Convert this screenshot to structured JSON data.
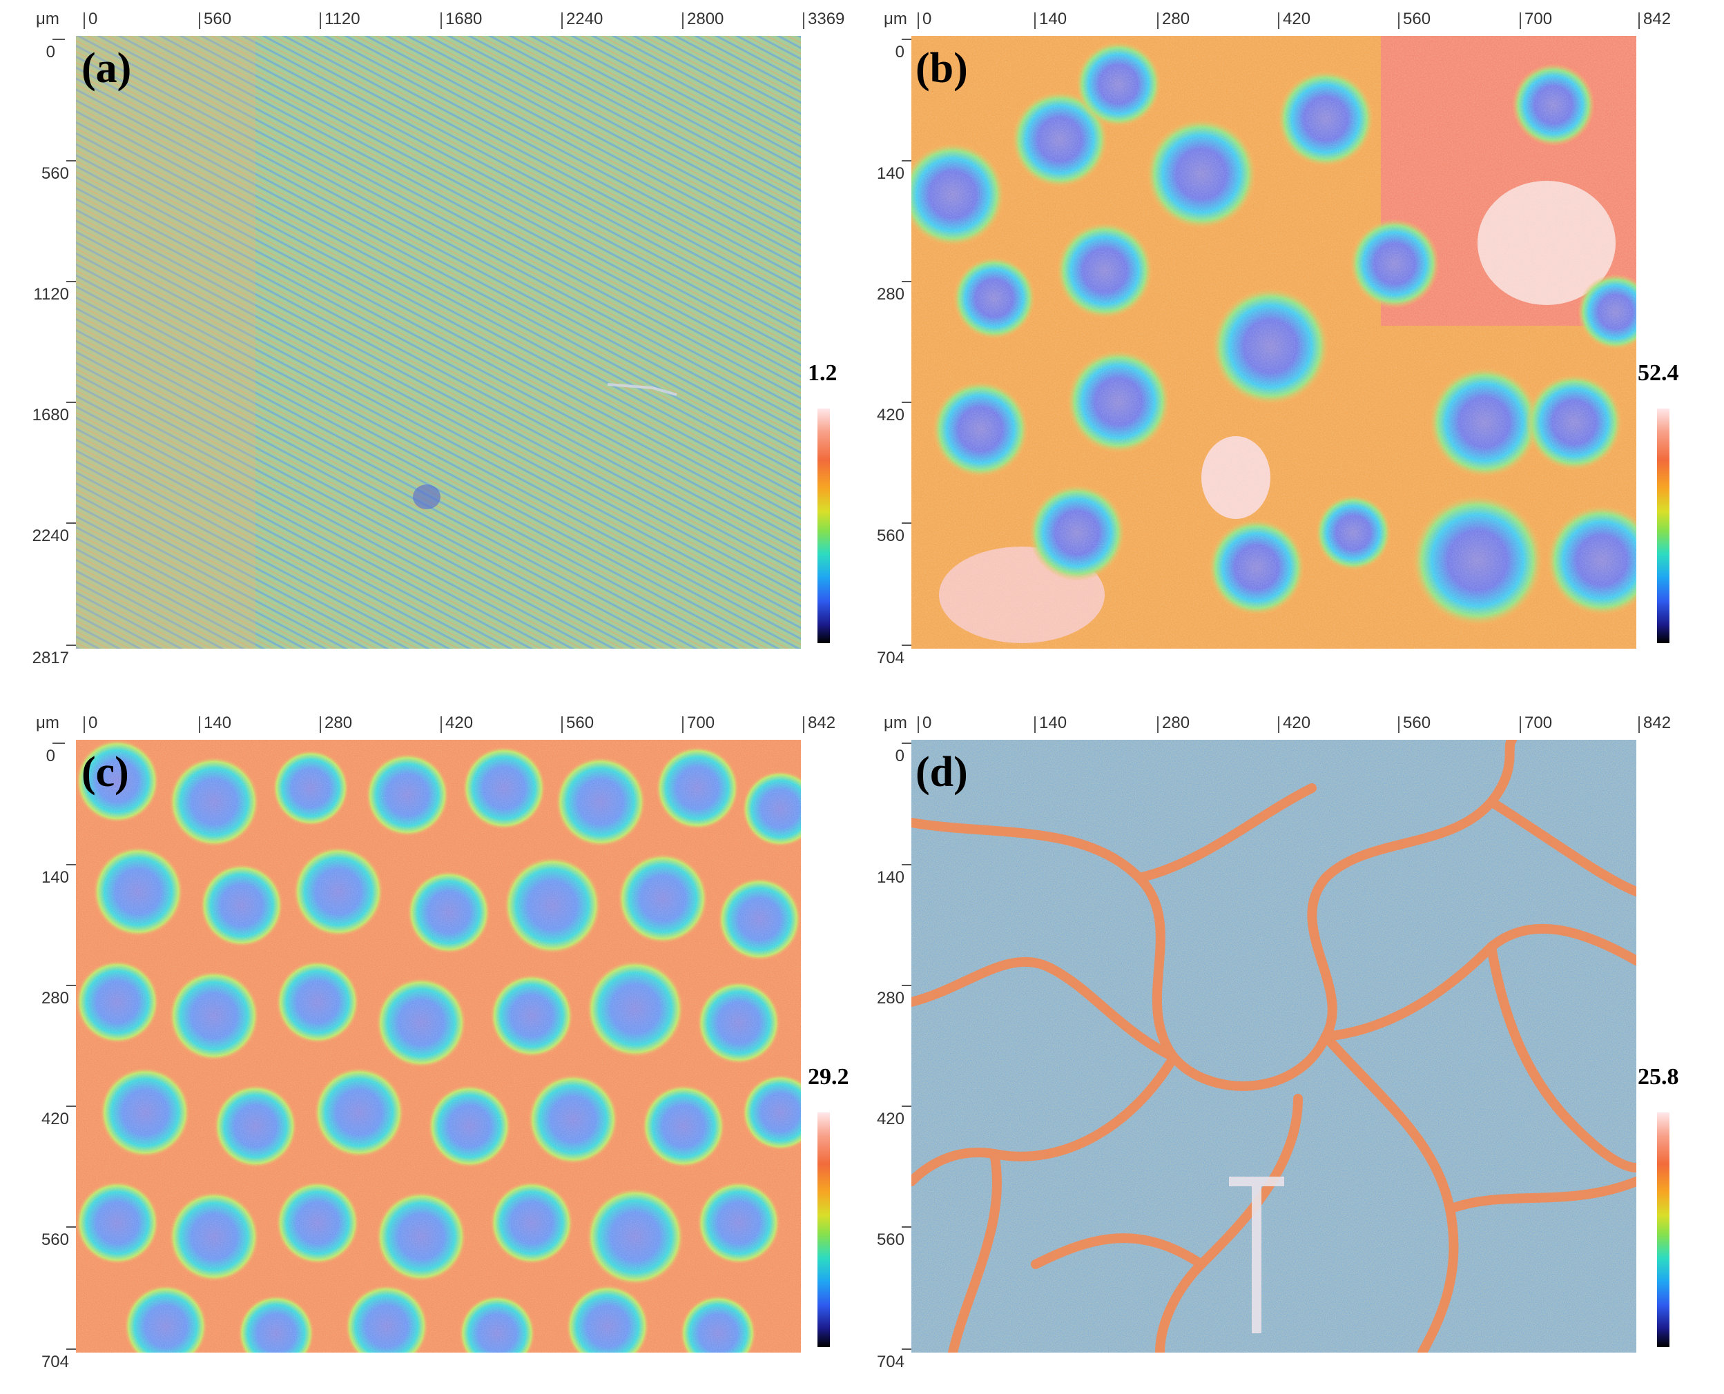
{
  "panels": [
    {
      "label": "(a)",
      "unit": "μm",
      "x_ticks": [
        "0",
        "560",
        "1120",
        "1680",
        "2240",
        "2800",
        "3369"
      ],
      "y_ticks": [
        "0",
        "560",
        "1120",
        "1680",
        "2240",
        "2817"
      ],
      "scale_max": "1.2"
    },
    {
      "label": "(b)",
      "unit": "μm",
      "x_ticks": [
        "0",
        "140",
        "280",
        "420",
        "560",
        "700",
        "842"
      ],
      "y_ticks": [
        "0",
        "140",
        "280",
        "420",
        "560",
        "704"
      ],
      "scale_max": "52.4"
    },
    {
      "label": "(c)",
      "unit": "μm",
      "x_ticks": [
        "0",
        "140",
        "280",
        "420",
        "560",
        "700",
        "842"
      ],
      "y_ticks": [
        "0",
        "140",
        "280",
        "420",
        "560",
        "704"
      ],
      "scale_max": "29.2"
    },
    {
      "label": "(d)",
      "unit": "μm",
      "x_ticks": [
        "0",
        "140",
        "280",
        "420",
        "560",
        "700",
        "842"
      ],
      "y_ticks": [
        "0",
        "140",
        "280",
        "420",
        "560",
        "704"
      ],
      "scale_max": "25.8"
    }
  ],
  "colors": {
    "colormap": [
      "#ffe7ea",
      "#f26b3b",
      "#f6a623",
      "#d8df2a",
      "#2ddcc1",
      "#20a6f2",
      "#2f5cf0",
      "#1b1b8c",
      "#000000"
    ],
    "panel_a_base": "#97c79a",
    "panel_b_base": "#f2a34a",
    "panel_c_base": "#5fb8e8",
    "panel_d_base": "#7cc3d9"
  }
}
